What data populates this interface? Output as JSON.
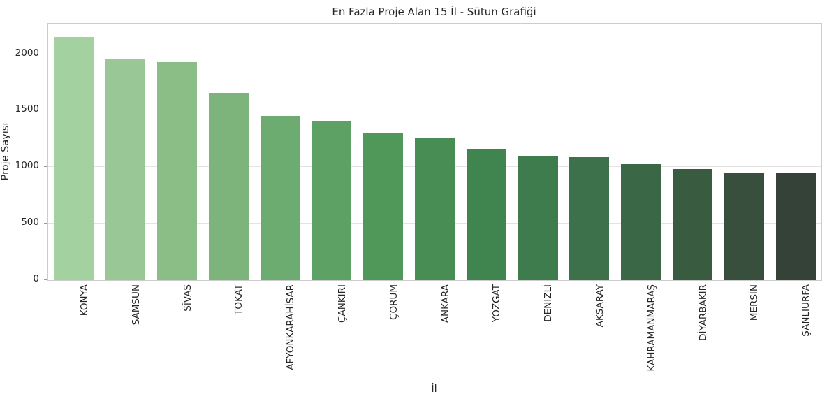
{
  "chart_data": {
    "type": "bar",
    "title": "En Fazla Proje Alan 15 İl - Sütun Grafiği",
    "xlabel": "İl",
    "ylabel": "Proje Sayısı",
    "categories": [
      "KONYA",
      "SAMSUN",
      "SİVAS",
      "TOKAT",
      "AFYONKARAHİSAR",
      "ÇANKIRI",
      "ÇORUM",
      "ANKARA",
      "YOZGAT",
      "DENİZLİ",
      "AKSARAY",
      "KAHRAMANMARAŞ",
      "DİYARBAKIR",
      "MERSİN",
      "ŞANLIURFA"
    ],
    "values": [
      2150,
      1960,
      1930,
      1660,
      1455,
      1410,
      1305,
      1255,
      1160,
      1095,
      1090,
      1025,
      985,
      955,
      950
    ],
    "bar_colors": [
      "#a4d1a0",
      "#99c795",
      "#8bbd87",
      "#7cb47c",
      "#6dac70",
      "#5ea165",
      "#50975a",
      "#488e54",
      "#40854f",
      "#3e7b4d",
      "#3d714b",
      "#3a6847",
      "#395c41",
      "#374f3c",
      "#344237"
    ],
    "yticks": [
      0,
      500,
      1000,
      1500,
      2000
    ],
    "ylim": [
      0,
      2269
    ],
    "grid": "horizontal",
    "legend": "none",
    "colors": {
      "background": "#ffffff",
      "spine": "#cccccc",
      "gridline": "#e3e3e3",
      "tick_mark": "#999999",
      "text": "#262626"
    },
    "xtick_rotation_deg": 90
  }
}
